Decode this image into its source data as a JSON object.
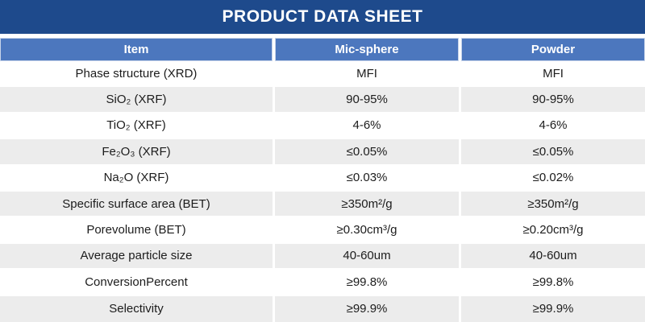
{
  "title": "PRODUCT DATA SHEET",
  "colors": {
    "banner_bg": "#1E4A8C",
    "header_bg": "#4C77BE",
    "header_text": "#FFFFFF",
    "alt_row_bg": "#ECECEC",
    "body_text": "#1C1C1C"
  },
  "table": {
    "columns": [
      "Item",
      "Mic-sphere",
      "Powder"
    ],
    "rows": [
      {
        "item": "Phase structure (XRD)",
        "mic_sphere": "MFI",
        "powder": "MFI"
      },
      {
        "item": "SiO₂ (XRF)",
        "mic_sphere": "90-95%",
        "powder": "90-95%"
      },
      {
        "item": "TiO₂ (XRF)",
        "mic_sphere": "4-6%",
        "powder": "4-6%"
      },
      {
        "item": "Fe₂O₃ (XRF)",
        "mic_sphere": "≤0.05%",
        "powder": "≤0.05%"
      },
      {
        "item": "Na₂O (XRF)",
        "mic_sphere": "≤0.03%",
        "powder": "≤0.02%"
      },
      {
        "item": "Specific surface area (BET)",
        "mic_sphere": "≥350m²/g",
        "powder": "≥350m²/g"
      },
      {
        "item": "Porevolume (BET)",
        "mic_sphere": "≥0.30cm³/g",
        "powder": "≥0.20cm³/g"
      },
      {
        "item": "Average particle size",
        "mic_sphere": "40-60um",
        "powder": "40-60um"
      },
      {
        "item": "ConversionPercent",
        "mic_sphere": "≥99.8%",
        "powder": "≥99.8%"
      },
      {
        "item": "Selectivity",
        "mic_sphere": "≥99.9%",
        "powder": "≥99.9%"
      }
    ]
  }
}
